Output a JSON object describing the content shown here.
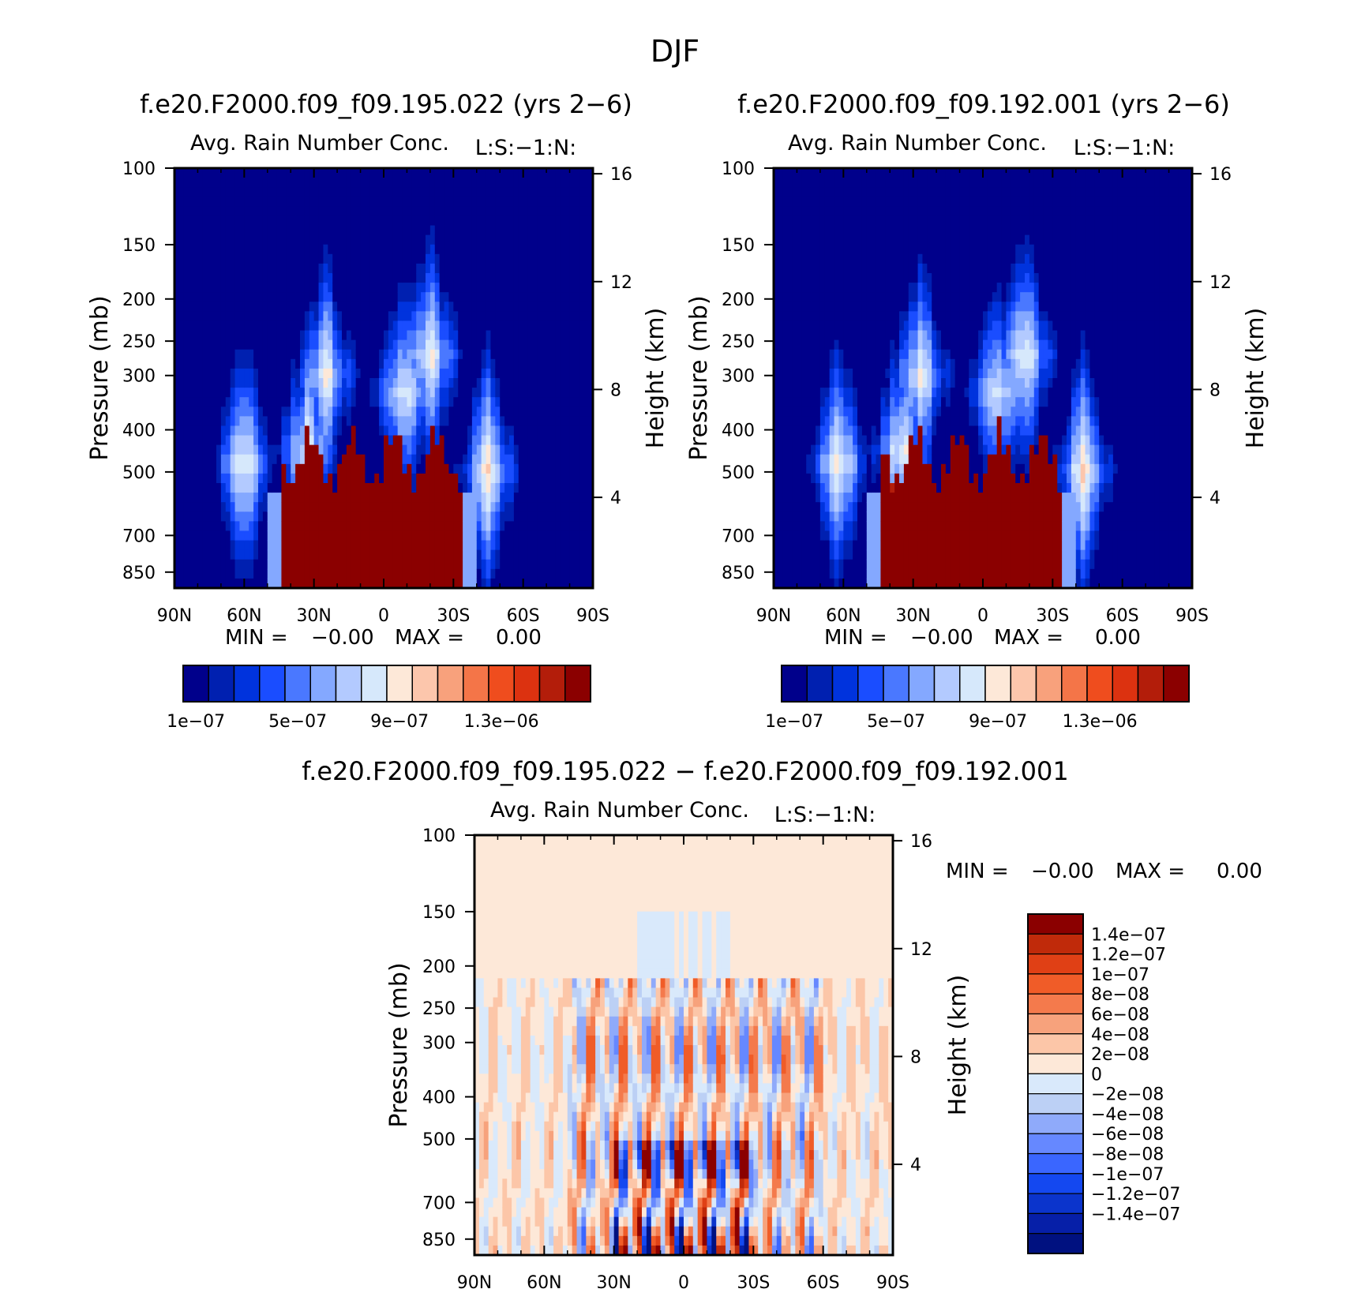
{
  "title": "DJF",
  "colors": {
    "seq": [
      "#00008b",
      "#0020b0",
      "#0033dd",
      "#1a4dff",
      "#4a78ff",
      "#84a8ff",
      "#b3caff",
      "#d6e8fb",
      "#fde8d8",
      "#fcc6ac",
      "#f8a17c",
      "#f47548",
      "#ef4d1e",
      "#dc3210",
      "#b31d0a",
      "#8b0000"
    ],
    "diff": [
      "#001180",
      "#061fa8",
      "#0b34cc",
      "#1448f0",
      "#3a66ff",
      "#6688ff",
      "#8faafa",
      "#bcd0f5",
      "#d9e9fb",
      "#fde8d8",
      "#fcc6a8",
      "#f7a27c",
      "#f47a4c",
      "#f05c28",
      "#e04015",
      "#c02a0a",
      "#8b0000"
    ]
  },
  "chart_data": [
    {
      "type": "heatmap",
      "title": "f.e20.F2000.f09_f09.195.022 (yrs 2−6)",
      "subtitle": "Avg. Rain Number Conc.",
      "level_tag": "L:S:−1:N:",
      "ylabel": "Pressure (mb)",
      "ylabel_right": "Height (km)",
      "xticks": [
        "90N",
        "60N",
        "30N",
        "0",
        "30S",
        "60S",
        "90S"
      ],
      "yticks": [
        "100",
        "150",
        "200",
        "250",
        "300",
        "400",
        "500",
        "700",
        "850"
      ],
      "yticks_right": [
        "16",
        "12",
        "8",
        "4"
      ],
      "min_label": "MIN =",
      "min_value": "−0.00",
      "max_label": "MAX =",
      "max_value": "0.00",
      "colorbar_labels": [
        "1e−07",
        "5e−07",
        "9e−07",
        "1.3e−06"
      ],
      "ylim": [
        100,
        925
      ]
    },
    {
      "type": "heatmap",
      "title": "f.e20.F2000.f09_f09.192.001 (yrs 2−6)",
      "subtitle": "Avg. Rain Number Conc.",
      "level_tag": "L:S:−1:N:",
      "ylabel": "Pressure (mb)",
      "ylabel_right": "Height (km)",
      "xticks": [
        "90N",
        "60N",
        "30N",
        "0",
        "30S",
        "60S",
        "90S"
      ],
      "yticks": [
        "100",
        "150",
        "200",
        "250",
        "300",
        "400",
        "500",
        "700",
        "850"
      ],
      "yticks_right": [
        "16",
        "12",
        "8",
        "4"
      ],
      "min_label": "MIN =",
      "min_value": "−0.00",
      "max_label": "MAX =",
      "max_value": "0.00",
      "colorbar_labels": [
        "1e−07",
        "5e−07",
        "9e−07",
        "1.3e−06"
      ],
      "ylim": [
        100,
        925
      ]
    },
    {
      "type": "heatmap",
      "title": "f.e20.F2000.f09_f09.195.022 − f.e20.F2000.f09_f09.192.001",
      "subtitle": "Avg. Rain Number Conc.",
      "level_tag": "L:S:−1:N:",
      "ylabel": "Pressure (mb)",
      "ylabel_right": "Height (km)",
      "xticks": [
        "90N",
        "60N",
        "30N",
        "0",
        "30S",
        "60S",
        "90S"
      ],
      "yticks": [
        "100",
        "150",
        "200",
        "250",
        "300",
        "400",
        "500",
        "700",
        "850"
      ],
      "yticks_right": [
        "16",
        "12",
        "8",
        "4"
      ],
      "min_label": "MIN =",
      "min_value": "−0.00",
      "max_label": "MAX =",
      "max_value": "0.00",
      "colorbar_labels": [
        "1.4e−07",
        "1.2e−07",
        "1e−07",
        "8e−08",
        "6e−08",
        "4e−08",
        "2e−08",
        "0",
        "−2e−08",
        "−4e−08",
        "−6e−08",
        "−8e−08",
        "−1e−07",
        "−1.2e−07",
        "−1.4e−07"
      ],
      "ylim": [
        100,
        925
      ]
    }
  ]
}
